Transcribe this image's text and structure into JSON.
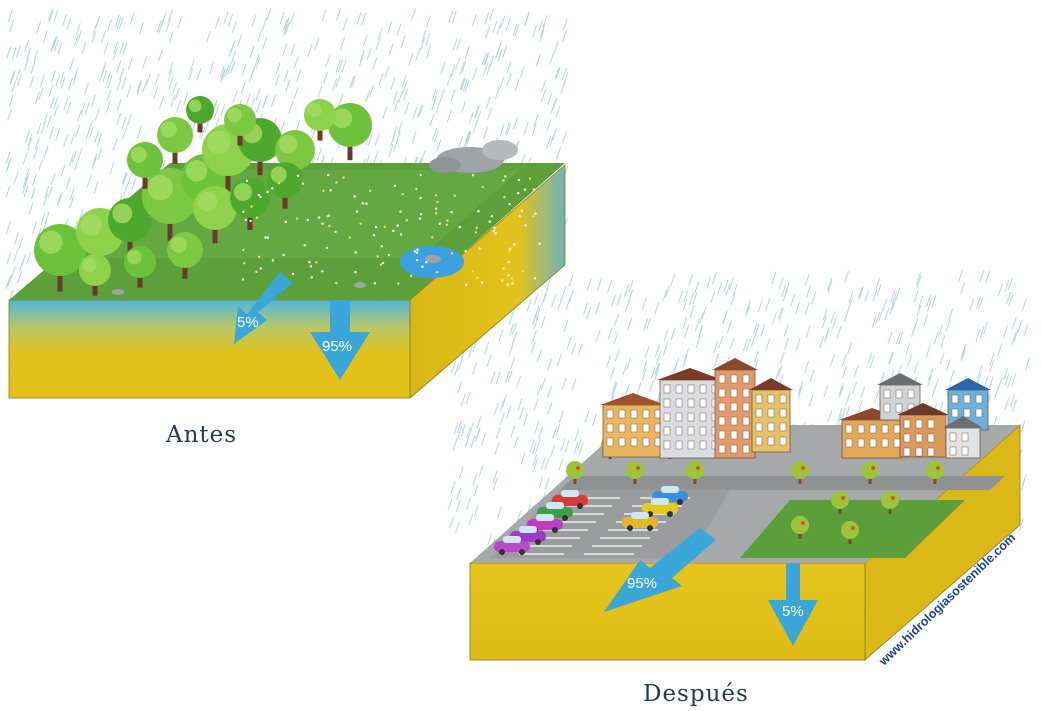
{
  "captions": {
    "before": "Antes",
    "after": "Después"
  },
  "flows": {
    "before": {
      "runoff": "5%",
      "infiltration": "95%"
    },
    "after": {
      "runoff": "95%",
      "infiltration": "5%"
    }
  },
  "watermark": "www.hidrologiasostenible.com",
  "colors": {
    "soil": "#e0c21c",
    "water": "#3aa7d8",
    "grass": "#5b9e3a",
    "road": "#a7a9ab",
    "rain": "#a9d2de"
  }
}
